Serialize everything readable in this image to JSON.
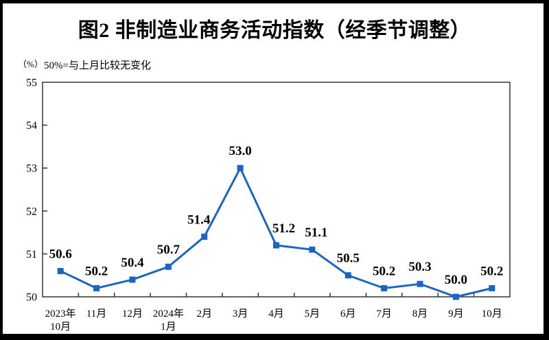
{
  "figure": {
    "title": "图2 非制造业商务活动指数（经季节调整）",
    "y_axis_unit": "（%）",
    "note": "50%=与上月比较无变化"
  },
  "chart_data": {
    "type": "line",
    "title": "图2 非制造业商务活动指数（经季节调整）",
    "note": "50%=与上月比较无变化",
    "categories": [
      [
        "2023年",
        "10月"
      ],
      [
        "11月"
      ],
      [
        "12月"
      ],
      [
        "2024年",
        "1月"
      ],
      [
        "2月"
      ],
      [
        "3月"
      ],
      [
        "4月"
      ],
      [
        "5月"
      ],
      [
        "6月"
      ],
      [
        "7月"
      ],
      [
        "8月"
      ],
      [
        "9月"
      ],
      [
        "10月"
      ]
    ],
    "series": [
      {
        "name": "非制造业商务活动指数",
        "values": [
          50.6,
          50.2,
          50.4,
          50.7,
          51.4,
          53.0,
          51.2,
          51.1,
          50.5,
          50.2,
          50.3,
          50.0,
          50.2
        ]
      }
    ],
    "data_labels": [
      "50.6",
      "50.2",
      "50.4",
      "50.7",
      "51.4",
      "53.0",
      "51.2",
      "51.1",
      "50.5",
      "50.2",
      "50.3",
      "50.0",
      "50.2"
    ],
    "ylabel": "（%）",
    "xlabel": "",
    "ylim": [
      50,
      55
    ],
    "y_ticks": [
      50,
      51,
      52,
      53,
      54,
      55
    ],
    "grid": false,
    "legend_position": "none",
    "line_color": "#1A64C4",
    "marker": "square",
    "axis_color": "#333333",
    "text_color": "#000000"
  }
}
